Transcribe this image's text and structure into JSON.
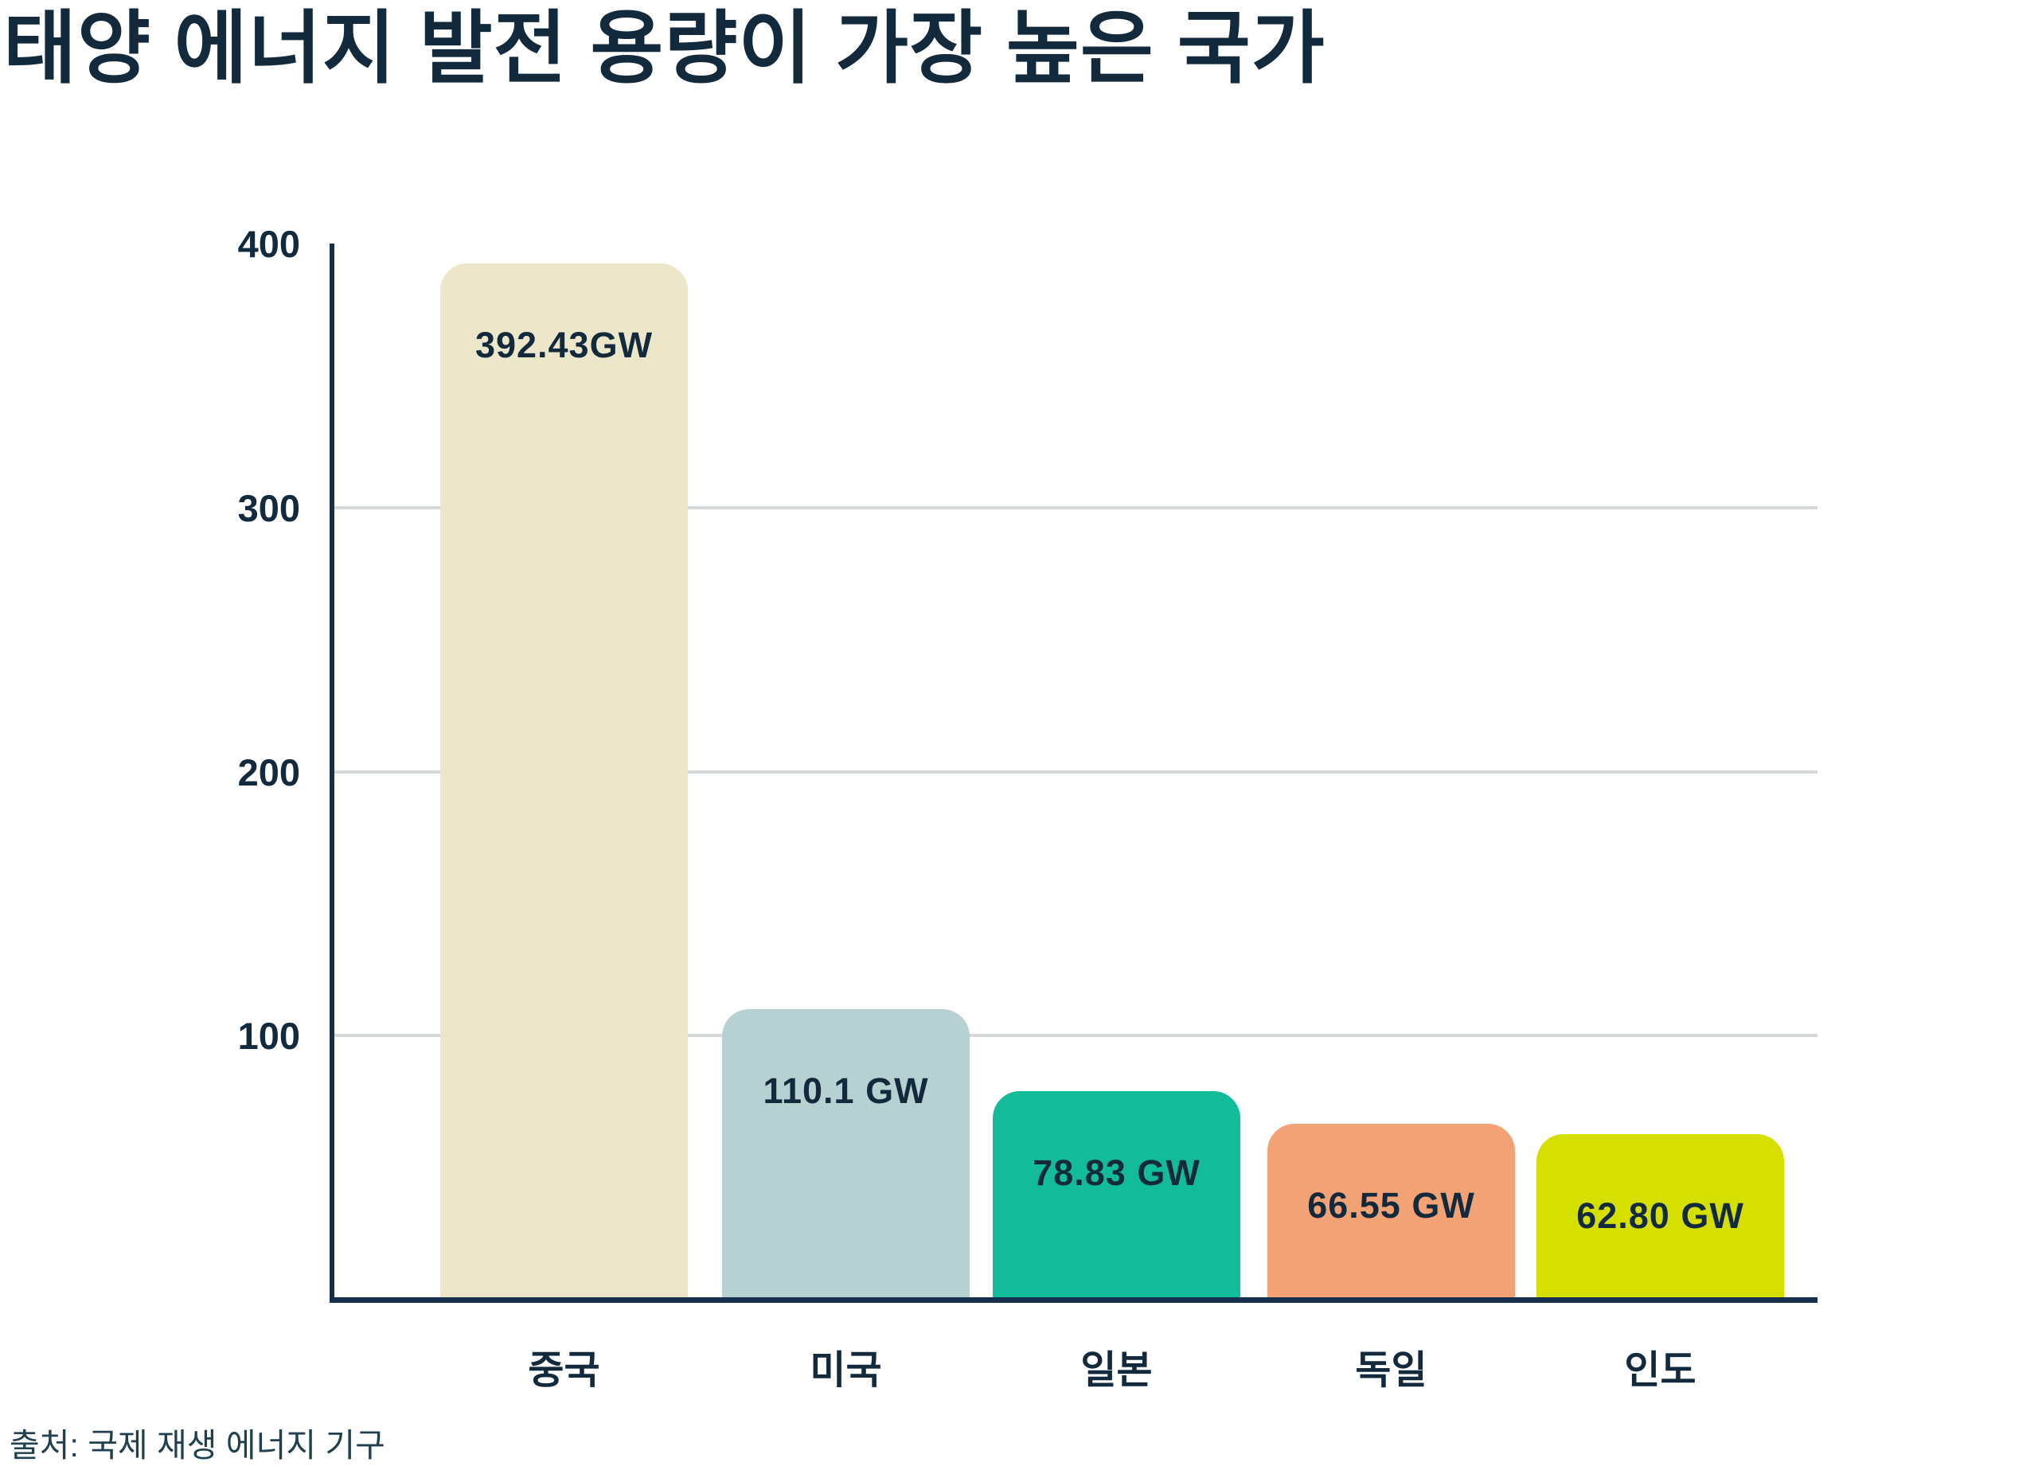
{
  "chart_data": {
    "type": "bar",
    "title": "태양 에너지 발전 용량이 가장 높은 국가",
    "categories": [
      "중국",
      "미국",
      "일본",
      "독일",
      "인도"
    ],
    "values": [
      392.43,
      110.1,
      78.83,
      66.55,
      62.8
    ],
    "value_labels": [
      "392.43GW",
      "110.1 GW",
      "78.83 GW",
      "66.55 GW",
      "62.80 GW"
    ],
    "unit": "GW",
    "bar_colors": [
      "#ece7ca",
      "#b7d1d3",
      "#12bc9a",
      "#f3a276",
      "#d5e000"
    ],
    "xlabel": "",
    "ylabel": "",
    "ylim": [
      0,
      400
    ],
    "yticks": [
      100,
      200,
      300,
      400
    ],
    "gridlines_at": [
      100,
      200,
      300
    ],
    "grid": "horizontal",
    "legend_position": "none"
  },
  "source": "출처: 국제 재생 에너지 기구",
  "colors": {
    "text": "#13293c",
    "axis": "#15304a",
    "gridline": "#d6d9da",
    "background": "#ffffff"
  }
}
